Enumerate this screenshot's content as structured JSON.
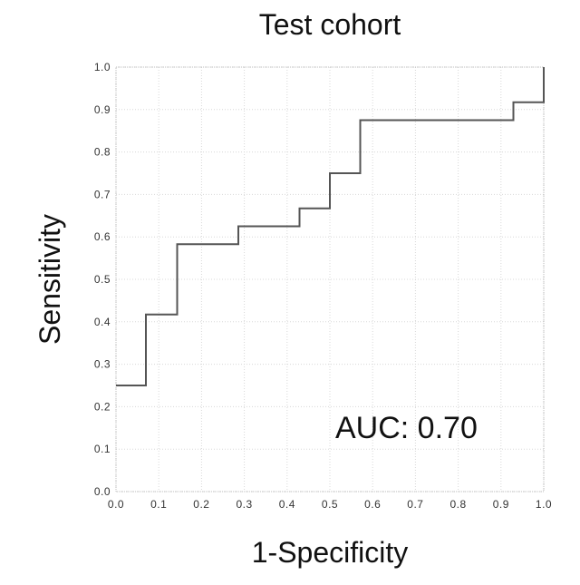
{
  "chart_data": {
    "type": "line",
    "title": "Test cohort",
    "xlabel": "1-Specificity",
    "ylabel": "Sensitivity",
    "xlim": [
      0,
      1
    ],
    "ylim": [
      0,
      1
    ],
    "grid": true,
    "xticks": [
      "0.0",
      "0.1",
      "0.2",
      "0.3",
      "0.4",
      "0.5",
      "0.6",
      "0.7",
      "0.8",
      "0.9",
      "1.0"
    ],
    "yticks": [
      "0.0",
      "0.1",
      "0.2",
      "0.3",
      "0.4",
      "0.5",
      "0.6",
      "0.7",
      "0.8",
      "0.9",
      "1.0"
    ],
    "annotation": "AUC: 0.70",
    "series": [
      {
        "x": [
          0.0,
          0.07,
          0.07,
          0.143,
          0.143,
          0.286,
          0.286,
          0.429,
          0.429,
          0.5,
          0.5,
          0.571,
          0.571,
          0.929,
          0.929,
          1.0,
          1.0
        ],
        "y": [
          0.25,
          0.25,
          0.417,
          0.417,
          0.583,
          0.583,
          0.625,
          0.625,
          0.667,
          0.667,
          0.75,
          0.75,
          0.875,
          0.875,
          0.917,
          0.917,
          1.0
        ]
      }
    ]
  }
}
